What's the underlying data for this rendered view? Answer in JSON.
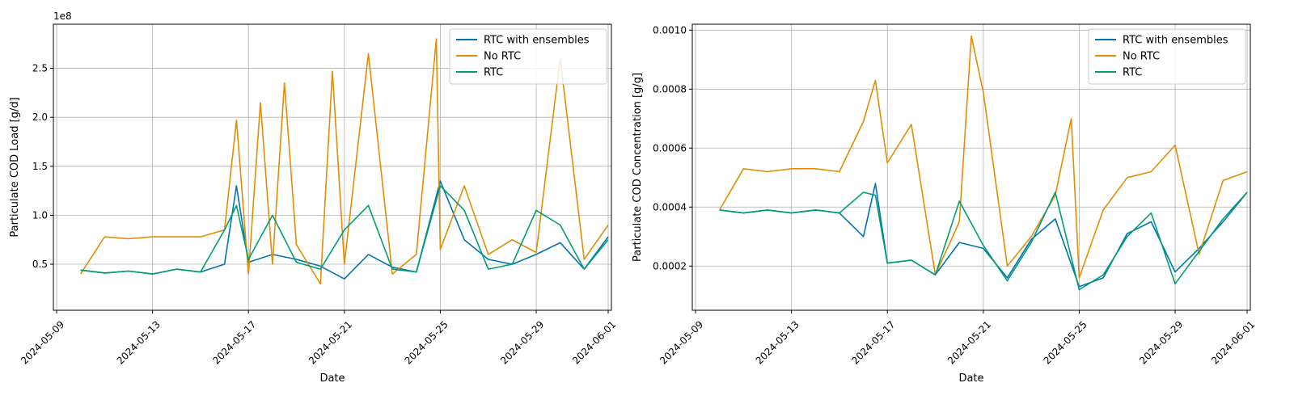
{
  "chart_data": [
    {
      "type": "line",
      "xlabel": "Date",
      "ylabel": "Particulate COD Load [g/d]",
      "y_offset_label": "1e8",
      "x_ticks": [
        "2024-05-09",
        "2024-05-13",
        "2024-05-17",
        "2024-05-21",
        "2024-05-25",
        "2024-05-29",
        "2024-06-01"
      ],
      "y_ticks": [
        0.5,
        1.0,
        1.5,
        2.0,
        2.5
      ],
      "y_tick_labels": [
        "0.5",
        "1.0",
        "1.5",
        "2.0",
        "2.5"
      ],
      "xlim": [
        "2024-05-09",
        "2024-06-01"
      ],
      "ylim": [
        0.03,
        2.95
      ],
      "grid": true,
      "legend_position": "top-right",
      "series": [
        {
          "name": "RTC with ensembles",
          "color": "#0173b2",
          "x": [
            "2024-05-10",
            "2024-05-11",
            "2024-05-12",
            "2024-05-13",
            "2024-05-14",
            "2024-05-15",
            "2024-05-16",
            "2024-05-16T12",
            "2024-05-17",
            "2024-05-18",
            "2024-05-19",
            "2024-05-20",
            "2024-05-21",
            "2024-05-22",
            "2024-05-23",
            "2024-05-24",
            "2024-05-25",
            "2024-05-26",
            "2024-05-27",
            "2024-05-28",
            "2024-05-29",
            "2024-05-30",
            "2024-05-31",
            "2024-06-01"
          ],
          "values": [
            0.44,
            0.41,
            0.43,
            0.4,
            0.45,
            0.42,
            0.5,
            1.3,
            0.52,
            0.6,
            0.55,
            0.48,
            0.35,
            0.6,
            0.47,
            0.42,
            1.35,
            0.75,
            0.55,
            0.5,
            0.6,
            0.72,
            0.45,
            0.78
          ]
        },
        {
          "name": "No RTC",
          "color": "#de8f05",
          "x": [
            "2024-05-10",
            "2024-05-11",
            "2024-05-12",
            "2024-05-13",
            "2024-05-14",
            "2024-05-15",
            "2024-05-16",
            "2024-05-16T12",
            "2024-05-17",
            "2024-05-17T12",
            "2024-05-18",
            "2024-05-18T12",
            "2024-05-19",
            "2024-05-20",
            "2024-05-20T12",
            "2024-05-21",
            "2024-05-22",
            "2024-05-23",
            "2024-05-24",
            "2024-05-24T20",
            "2024-05-25",
            "2024-05-26",
            "2024-05-27",
            "2024-05-28",
            "2024-05-29",
            "2024-05-30",
            "2024-05-31",
            "2024-06-01"
          ],
          "values": [
            0.4,
            0.78,
            0.76,
            0.78,
            0.78,
            0.78,
            0.85,
            1.97,
            0.4,
            2.15,
            0.5,
            2.35,
            0.7,
            0.3,
            2.47,
            0.5,
            2.65,
            0.4,
            0.6,
            2.8,
            0.65,
            1.3,
            0.6,
            0.75,
            0.62,
            2.6,
            0.55,
            0.9
          ]
        },
        {
          "name": "RTC",
          "color": "#029e73",
          "x": [
            "2024-05-10",
            "2024-05-11",
            "2024-05-12",
            "2024-05-13",
            "2024-05-14",
            "2024-05-15",
            "2024-05-16",
            "2024-05-16T12",
            "2024-05-17",
            "2024-05-18",
            "2024-05-19",
            "2024-05-20",
            "2024-05-21",
            "2024-05-22",
            "2024-05-23",
            "2024-05-24",
            "2024-05-25",
            "2024-05-26",
            "2024-05-27",
            "2024-05-28",
            "2024-05-29",
            "2024-05-30",
            "2024-05-31",
            "2024-06-01"
          ],
          "values": [
            0.44,
            0.41,
            0.43,
            0.4,
            0.45,
            0.42,
            0.85,
            1.1,
            0.55,
            1.0,
            0.52,
            0.45,
            0.85,
            1.1,
            0.45,
            0.42,
            1.3,
            1.05,
            0.45,
            0.5,
            1.05,
            0.9,
            0.45,
            0.75
          ]
        }
      ]
    },
    {
      "type": "line",
      "xlabel": "Date",
      "ylabel": "Particulate COD Concentration [g/g]",
      "x_ticks": [
        "2024-05-09",
        "2024-05-13",
        "2024-05-17",
        "2024-05-21",
        "2024-05-25",
        "2024-05-29",
        "2024-06-01"
      ],
      "y_ticks": [
        0.0002,
        0.0004,
        0.0006,
        0.0008,
        0.001
      ],
      "y_tick_labels": [
        "0.0002",
        "0.0004",
        "0.0006",
        "0.0008",
        "0.0010"
      ],
      "xlim": [
        "2024-05-09",
        "2024-06-01"
      ],
      "ylim": [
        5e-05,
        0.00102
      ],
      "grid": true,
      "legend_position": "top-right",
      "series": [
        {
          "name": "RTC with ensembles",
          "color": "#0173b2",
          "x": [
            "2024-05-10",
            "2024-05-11",
            "2024-05-12",
            "2024-05-13",
            "2024-05-14",
            "2024-05-15",
            "2024-05-16",
            "2024-05-16T12",
            "2024-05-17",
            "2024-05-18",
            "2024-05-19",
            "2024-05-20",
            "2024-05-21",
            "2024-05-22",
            "2024-05-23",
            "2024-05-24",
            "2024-05-25",
            "2024-05-26",
            "2024-05-27",
            "2024-05-28",
            "2024-05-29",
            "2024-05-30",
            "2024-05-31",
            "2024-06-01"
          ],
          "values": [
            0.00039,
            0.00038,
            0.00039,
            0.00038,
            0.00039,
            0.00038,
            0.0003,
            0.00048,
            0.00021,
            0.00022,
            0.00017,
            0.00028,
            0.00026,
            0.00016,
            0.00029,
            0.00036,
            0.00013,
            0.00016,
            0.00031,
            0.00035,
            0.00018,
            0.00026,
            0.00035,
            0.00045
          ]
        },
        {
          "name": "No RTC",
          "color": "#de8f05",
          "x": [
            "2024-05-10",
            "2024-05-11",
            "2024-05-12",
            "2024-05-13",
            "2024-05-14",
            "2024-05-15",
            "2024-05-16",
            "2024-05-16T12",
            "2024-05-17",
            "2024-05-18",
            "2024-05-19",
            "2024-05-20",
            "2024-05-20T12",
            "2024-05-21",
            "2024-05-22",
            "2024-05-23",
            "2024-05-24",
            "2024-05-24T16",
            "2024-05-25",
            "2024-05-26",
            "2024-05-27",
            "2024-05-28",
            "2024-05-29",
            "2024-05-30",
            "2024-05-31",
            "2024-06-01"
          ],
          "values": [
            0.00039,
            0.00053,
            0.00052,
            0.00053,
            0.00053,
            0.00052,
            0.00069,
            0.00083,
            0.00055,
            0.00068,
            0.00017,
            0.00035,
            0.00098,
            0.00079,
            0.0002,
            0.0003,
            0.00044,
            0.0007,
            0.00016,
            0.00039,
            0.0005,
            0.00052,
            0.00061,
            0.00024,
            0.00049,
            0.00052
          ]
        },
        {
          "name": "RTC",
          "color": "#029e73",
          "x": [
            "2024-05-10",
            "2024-05-11",
            "2024-05-12",
            "2024-05-13",
            "2024-05-14",
            "2024-05-15",
            "2024-05-16",
            "2024-05-16T12",
            "2024-05-17",
            "2024-05-18",
            "2024-05-19",
            "2024-05-20",
            "2024-05-21",
            "2024-05-22",
            "2024-05-23",
            "2024-05-24",
            "2024-05-25",
            "2024-05-26",
            "2024-05-27",
            "2024-05-28",
            "2024-05-29",
            "2024-05-30",
            "2024-05-31",
            "2024-06-01"
          ],
          "values": [
            0.00039,
            0.00038,
            0.00039,
            0.00038,
            0.00039,
            0.00038,
            0.00045,
            0.00044,
            0.00021,
            0.00022,
            0.00017,
            0.00042,
            0.00027,
            0.00015,
            0.00028,
            0.00045,
            0.00012,
            0.00017,
            0.0003,
            0.00038,
            0.00014,
            0.00025,
            0.00036,
            0.00045
          ]
        }
      ]
    }
  ]
}
